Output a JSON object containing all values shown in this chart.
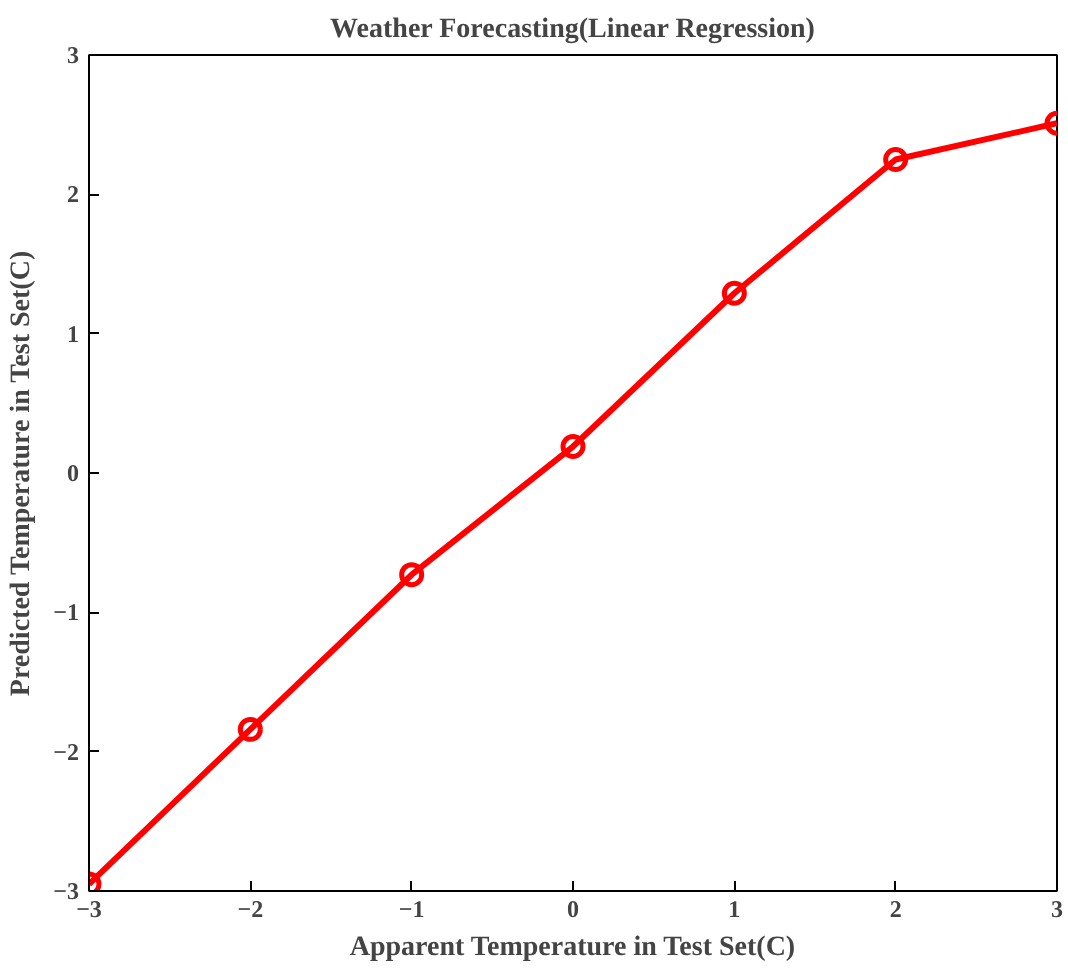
{
  "chart_data": {
    "type": "line",
    "title": "Weather Forecasting(Linear Regression)",
    "xlabel": "Apparent Temperature in Test Set(C)",
    "ylabel": "Predicted Temperature in Test Set(C)",
    "x": [
      -3,
      -2,
      -1,
      0,
      1,
      2,
      3
    ],
    "series": [
      {
        "color": "#ff0000",
        "values": [
          -2.95,
          -1.84,
          -0.73,
          0.19,
          1.29,
          2.25,
          2.51
        ]
      }
    ],
    "xlim": [
      -3,
      3
    ],
    "ylim": [
      -3,
      3
    ],
    "xticks": [
      -3,
      -2,
      -1,
      0,
      1,
      2,
      3
    ],
    "yticks": [
      -3,
      -2,
      -1,
      0,
      1,
      2,
      3
    ],
    "grid": false,
    "marker": "circle",
    "line_style": "solid"
  }
}
